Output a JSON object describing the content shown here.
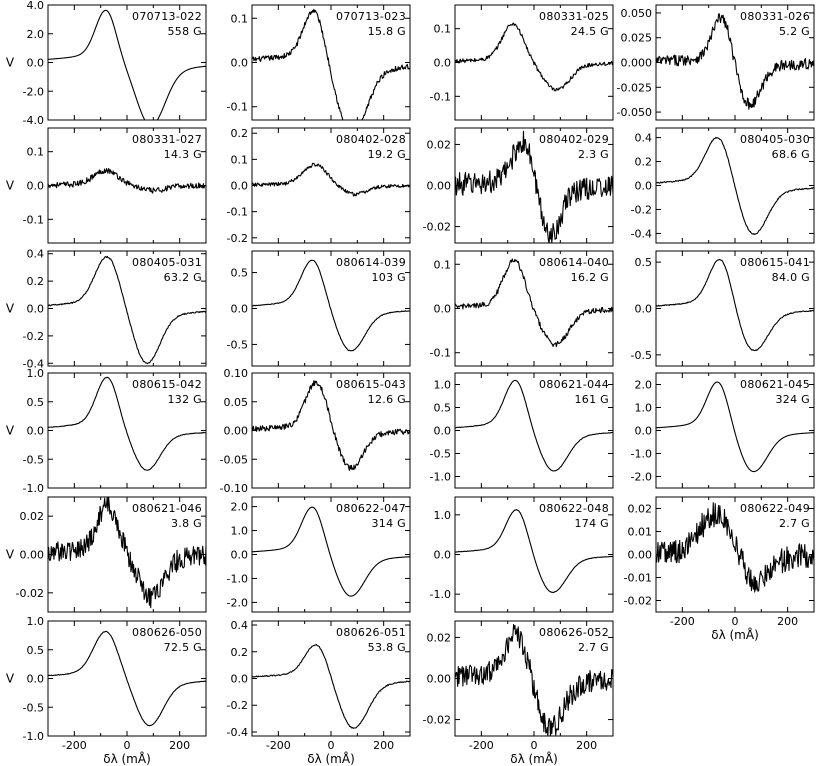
{
  "chart_data": {
    "type": "line",
    "layout": "grid of small multiples, 4 columns x 6 rows",
    "shared_x": {
      "label": "δλ (mÅ)",
      "range": [
        -300,
        300
      ],
      "ticks": [
        -200,
        0,
        200
      ]
    },
    "y_label": "V",
    "panels": [
      {
        "id": "070713-022",
        "field": "558 G",
        "ylim": [
          -4.0,
          4.0
        ],
        "yticks": [
          -4,
          -2,
          0,
          2,
          4
        ],
        "ydecimals": 1,
        "amp": 3.65,
        "ratio": 0.83,
        "wpos": 38,
        "wneg": 52,
        "noise": 0.0,
        "xmin": -80,
        "xmax": 90,
        "tail": "long"
      },
      {
        "id": "070713-023",
        "field": "15.8 G",
        "ylim": [
          -0.13,
          0.13
        ],
        "yticks": [
          -0.1,
          0,
          0.1
        ],
        "ydecimals": 1,
        "amp": 0.12,
        "ratio": 0.72,
        "wpos": 38,
        "wneg": 52,
        "noise": 0.006,
        "xmin": -65,
        "xmax": 80,
        "tail": "long"
      },
      {
        "id": "080331-025",
        "field": "24.5 G",
        "ylim": [
          -0.17,
          0.17
        ],
        "yticks": [
          -0.1,
          0,
          0.1
        ],
        "ydecimals": 1,
        "amp": 0.115,
        "ratio": 1.4,
        "wpos": 40,
        "wneg": 48,
        "noise": 0.006,
        "xmin": -80,
        "xmax": 85,
        "tail": "short"
      },
      {
        "id": "080331-026",
        "field": "5.2 G",
        "ylim": [
          -0.058,
          0.058
        ],
        "yticks": [
          -0.05,
          -0.025,
          0,
          0.025,
          0.05
        ],
        "ydecimals": 3,
        "amp": 0.047,
        "ratio": 1.1,
        "wpos": 35,
        "wneg": 42,
        "noise": 0.004,
        "xmin": -50,
        "xmax": 55,
        "tail": "short"
      },
      {
        "id": "080331-027",
        "field": "14.3 G",
        "ylim": [
          -0.17,
          0.17
        ],
        "yticks": [
          -0.1,
          0,
          0.1
        ],
        "ydecimals": 1,
        "amp": 0.045,
        "ratio": 3.0,
        "wpos": 45,
        "wneg": 45,
        "noise": 0.006,
        "xmin": -80,
        "xmax": 100,
        "tail": "short"
      },
      {
        "id": "080402-028",
        "field": "19.2 G",
        "ylim": [
          -0.22,
          0.22
        ],
        "yticks": [
          -0.2,
          -0.1,
          0,
          0.1,
          0.2
        ],
        "ydecimals": 1,
        "amp": 0.08,
        "ratio": 2.4,
        "wpos": 45,
        "wneg": 45,
        "noise": 0.007,
        "xmin": -60,
        "xmax": 90,
        "tail": "short"
      },
      {
        "id": "080402-029",
        "field": "2.3 G",
        "ylim": [
          -0.028,
          0.028
        ],
        "yticks": [
          -0.02,
          0,
          0.02
        ],
        "ydecimals": 2,
        "amp": 0.022,
        "ratio": 0.9,
        "wpos": 40,
        "wneg": 40,
        "noise": 0.004,
        "xmin": -40,
        "xmax": 60,
        "tail": "short"
      },
      {
        "id": "080405-030",
        "field": "68.6 G",
        "ylim": [
          -0.48,
          0.48
        ],
        "yticks": [
          -0.4,
          -0.2,
          0,
          0.2,
          0.4
        ],
        "ydecimals": 1,
        "amp": 0.41,
        "ratio": 1.0,
        "wpos": 45,
        "wneg": 50,
        "noise": 0.005,
        "xmin": -65,
        "xmax": 70,
        "tail": "long"
      },
      {
        "id": "080405-031",
        "field": "63.2 G",
        "ylim": [
          -0.42,
          0.42
        ],
        "yticks": [
          -0.4,
          -0.2,
          0,
          0.2,
          0.4
        ],
        "ydecimals": 1,
        "amp": 0.38,
        "ratio": 0.95,
        "wpos": 45,
        "wneg": 48,
        "noise": 0.005,
        "xmin": -75,
        "xmax": 75,
        "tail": "long"
      },
      {
        "id": "080614-039",
        "field": "103 G",
        "ylim": [
          -0.8,
          0.8
        ],
        "yticks": [
          -0.5,
          0,
          0.5
        ],
        "ydecimals": 1,
        "amp": 0.68,
        "ratio": 1.15,
        "wpos": 42,
        "wneg": 50,
        "noise": 0.005,
        "xmin": -70,
        "xmax": 75,
        "tail": "long"
      },
      {
        "id": "080614-040",
        "field": "16.2 G",
        "ylim": [
          -0.13,
          0.13
        ],
        "yticks": [
          -0.1,
          0,
          0.1
        ],
        "ydecimals": 1,
        "amp": 0.11,
        "ratio": 1.35,
        "wpos": 40,
        "wneg": 50,
        "noise": 0.006,
        "xmin": -75,
        "xmax": 80,
        "tail": "short"
      },
      {
        "id": "080615-041",
        "field": "84.0 G",
        "ylim": [
          -0.62,
          0.62
        ],
        "yticks": [
          -0.5,
          0,
          0.5
        ],
        "ydecimals": 1,
        "amp": 0.55,
        "ratio": 1.2,
        "wpos": 42,
        "wneg": 52,
        "noise": 0.005,
        "xmin": -55,
        "xmax": 70,
        "tail": "long"
      },
      {
        "id": "080615-042",
        "field": "132 G",
        "ylim": [
          -1.0,
          1.0
        ],
        "yticks": [
          -1,
          -0.5,
          0,
          0.5,
          1
        ],
        "ydecimals": 1,
        "amp": 0.93,
        "ratio": 1.35,
        "wpos": 40,
        "wneg": 48,
        "noise": 0.005,
        "xmin": -75,
        "xmax": 75,
        "tail": "long"
      },
      {
        "id": "080615-043",
        "field": "12.6 G",
        "ylim": [
          -0.1,
          0.1
        ],
        "yticks": [
          -0.1,
          -0.05,
          0,
          0.05,
          0.1
        ],
        "ydecimals": 2,
        "amp": 0.085,
        "ratio": 1.3,
        "wpos": 40,
        "wneg": 45,
        "noise": 0.005,
        "xmin": -55,
        "xmax": 75,
        "tail": "short"
      },
      {
        "id": "080621-044",
        "field": "161 G",
        "ylim": [
          -1.25,
          1.25
        ],
        "yticks": [
          -1,
          -0.5,
          0,
          0.5,
          1
        ],
        "ydecimals": 1,
        "amp": 1.1,
        "ratio": 1.25,
        "wpos": 40,
        "wneg": 50,
        "noise": 0.005,
        "xmin": -70,
        "xmax": 75,
        "tail": "long"
      },
      {
        "id": "080621-045",
        "field": "324 G",
        "ylim": [
          -2.5,
          2.5
        ],
        "yticks": [
          -2,
          -1,
          0,
          1,
          2
        ],
        "ydecimals": 1,
        "amp": 2.15,
        "ratio": 1.2,
        "wpos": 40,
        "wneg": 50,
        "noise": 0.0,
        "xmin": -65,
        "xmax": 70,
        "tail": "long"
      },
      {
        "id": "080621-046",
        "field": "3.8 G",
        "ylim": [
          -0.03,
          0.03
        ],
        "yticks": [
          -0.02,
          0,
          0.02
        ],
        "ydecimals": 2,
        "amp": 0.025,
        "ratio": 1.1,
        "wpos": 40,
        "wneg": 45,
        "noise": 0.004,
        "xmin": -75,
        "xmax": 90,
        "tail": "short"
      },
      {
        "id": "080622-047",
        "field": "314 G",
        "ylim": [
          -2.4,
          2.4
        ],
        "yticks": [
          -2,
          -1,
          0,
          1,
          2
        ],
        "ydecimals": 1,
        "amp": 2.0,
        "ratio": 1.15,
        "wpos": 40,
        "wneg": 50,
        "noise": 0.0,
        "xmin": -70,
        "xmax": 75,
        "tail": "long"
      },
      {
        "id": "080622-048",
        "field": "174 G",
        "ylim": [
          -1.45,
          1.45
        ],
        "yticks": [
          -1,
          0,
          1
        ],
        "ydecimals": 1,
        "amp": 1.15,
        "ratio": 1.2,
        "wpos": 40,
        "wneg": 50,
        "noise": 0.005,
        "xmin": -65,
        "xmax": 70,
        "tail": "long"
      },
      {
        "id": "080622-049",
        "field": "2.7 G",
        "ylim": [
          -0.025,
          0.025
        ],
        "yticks": [
          -0.02,
          -0.01,
          0,
          0.01,
          0.02
        ],
        "ydecimals": 2,
        "amp": 0.018,
        "ratio": 1.5,
        "wpos": 60,
        "wneg": 55,
        "noise": 0.004,
        "xmin": -70,
        "xmax": 75,
        "tail": "short"
      },
      {
        "id": "080626-050",
        "field": "72.5 G",
        "ylim": [
          -1.0,
          1.0
        ],
        "yticks": [
          -1,
          -0.5,
          0,
          0.5,
          1
        ],
        "ydecimals": 1,
        "amp": 0.82,
        "ratio": 1.0,
        "wpos": 45,
        "wneg": 50,
        "noise": 0.005,
        "xmin": -80,
        "xmax": 85,
        "tail": "long"
      },
      {
        "id": "080626-051",
        "field": "53.8 G",
        "ylim": [
          -0.43,
          0.43
        ],
        "yticks": [
          -0.4,
          -0.2,
          0,
          0.2,
          0.4
        ],
        "ydecimals": 1,
        "amp": 0.26,
        "ratio": 0.7,
        "wpos": 42,
        "wneg": 52,
        "noise": 0.004,
        "xmin": -55,
        "xmax": 85,
        "tail": "long"
      },
      {
        "id": "080626-052",
        "field": "2.7 G",
        "ylim": [
          -0.028,
          0.028
        ],
        "yticks": [
          -0.02,
          0,
          0.02
        ],
        "ydecimals": 2,
        "amp": 0.022,
        "ratio": 0.9,
        "wpos": 45,
        "wneg": 50,
        "noise": 0.004,
        "xmin": -65,
        "xmax": 60,
        "tail": "short"
      }
    ]
  }
}
